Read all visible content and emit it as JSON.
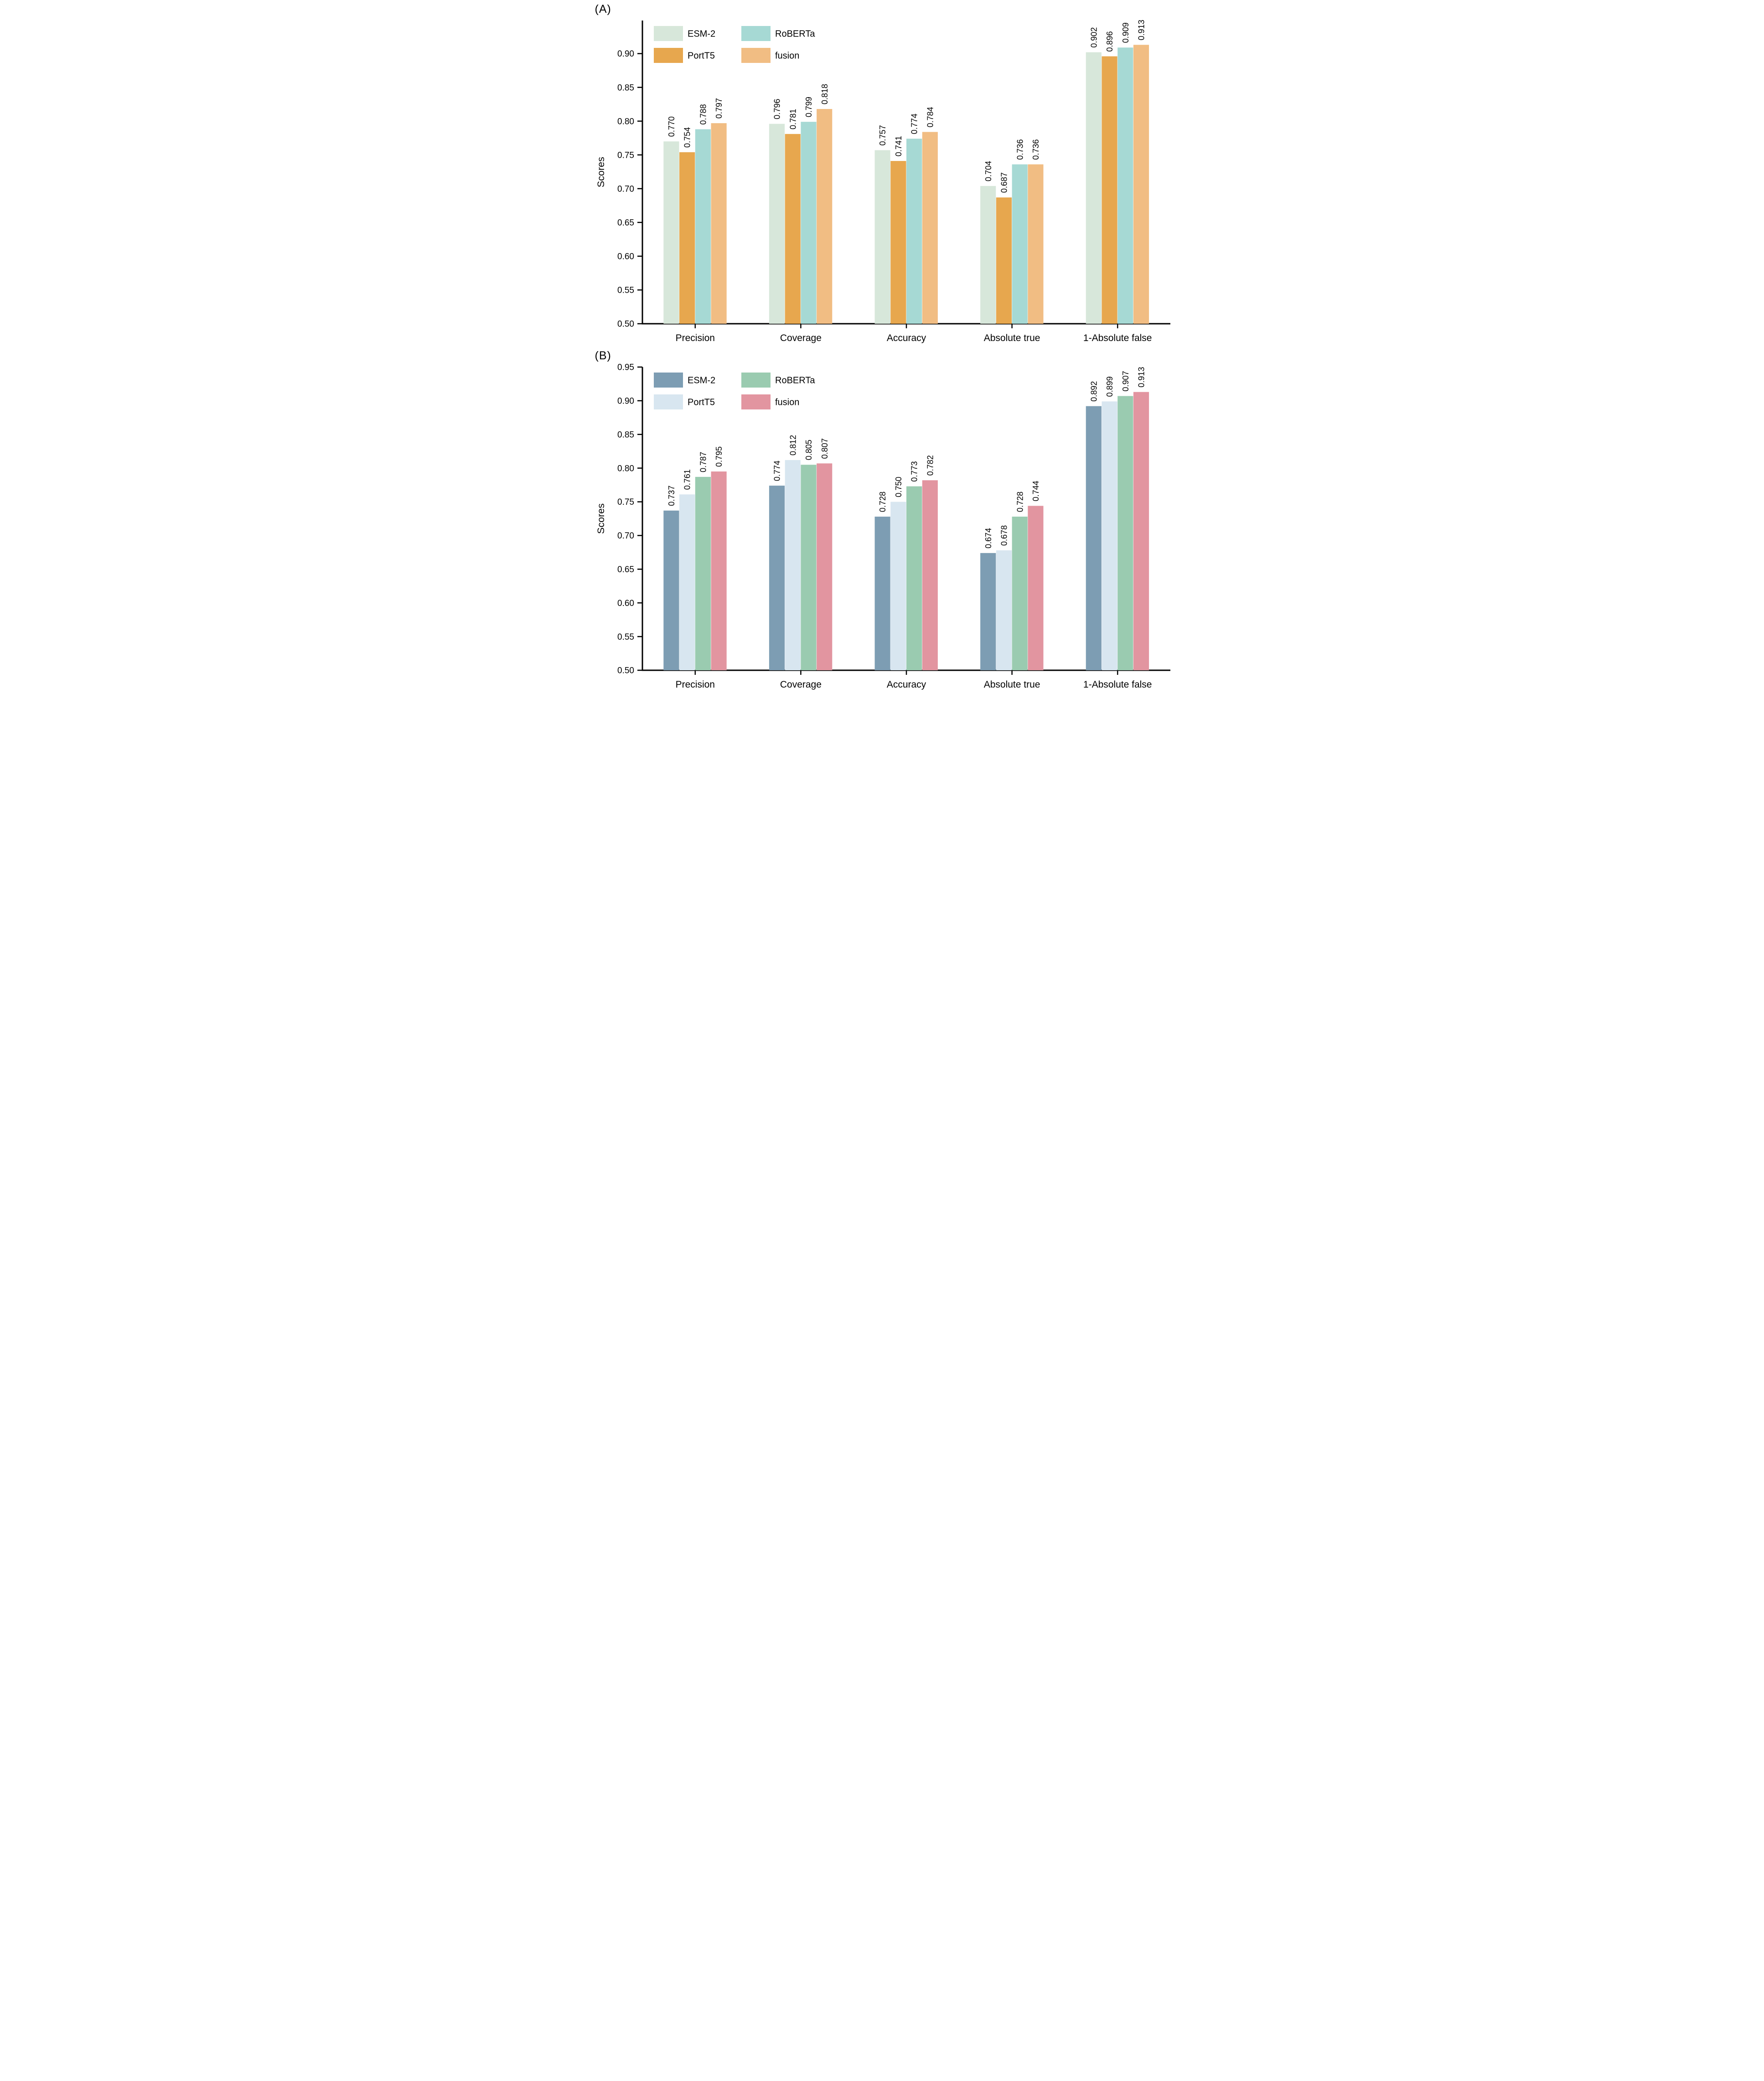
{
  "chart_data": [
    {
      "panel_label": "(A)",
      "type": "bar",
      "title": "",
      "ylabel": "Scores",
      "xlabel": "",
      "ylim": [
        0.5,
        0.949
      ],
      "yticks": [
        "0.50",
        "0.55",
        "0.60",
        "0.65",
        "0.70",
        "0.75",
        "0.80",
        "0.85",
        "0.90"
      ],
      "grid": false,
      "legend_position": "upper-left-inside-two-columns",
      "value_label_decimals": 3,
      "value_label_rotation": -90,
      "categories": [
        "Precision",
        "Coverage",
        "Accuracy",
        "Absolute true",
        "1-Absolute false"
      ],
      "series": [
        {
          "name": "ESM-2",
          "color": "#d7e7da",
          "values": [
            0.77,
            0.796,
            0.757,
            0.704,
            0.902
          ]
        },
        {
          "name": "PortT5",
          "color": "#e7a74e",
          "values": [
            0.754,
            0.781,
            0.741,
            0.687,
            0.896
          ]
        },
        {
          "name": "RoBERTa",
          "color": "#a6d9d4",
          "values": [
            0.788,
            0.799,
            0.774,
            0.736,
            0.909
          ]
        },
        {
          "name": "fusion",
          "color": "#f1bd83",
          "values": [
            0.797,
            0.818,
            0.784,
            0.736,
            0.913
          ]
        }
      ]
    },
    {
      "panel_label": "(B)",
      "type": "bar",
      "title": "",
      "ylabel": "Scores",
      "xlabel": "",
      "ylim": [
        0.5,
        0.95
      ],
      "yticks": [
        "0.50",
        "0.55",
        "0.60",
        "0.65",
        "0.70",
        "0.75",
        "0.80",
        "0.85",
        "0.90",
        "0.95"
      ],
      "grid": false,
      "legend_position": "upper-left-inside-two-columns",
      "value_label_decimals": 3,
      "value_label_rotation": -90,
      "categories": [
        "Precision",
        "Coverage",
        "Accuracy",
        "Absolute true",
        "1-Absolute false"
      ],
      "series": [
        {
          "name": "ESM-2",
          "color": "#7d9db3",
          "values": [
            0.737,
            0.774,
            0.728,
            0.674,
            0.892
          ]
        },
        {
          "name": "PortT5",
          "color": "#d8e6f0",
          "values": [
            0.761,
            0.812,
            0.75,
            0.678,
            0.899
          ]
        },
        {
          "name": "RoBERTa",
          "color": "#9acbb0",
          "values": [
            0.787,
            0.805,
            0.773,
            0.728,
            0.907
          ]
        },
        {
          "name": "fusion",
          "color": "#e295a0",
          "values": [
            0.795,
            0.807,
            0.782,
            0.744,
            0.913
          ]
        }
      ]
    }
  ]
}
